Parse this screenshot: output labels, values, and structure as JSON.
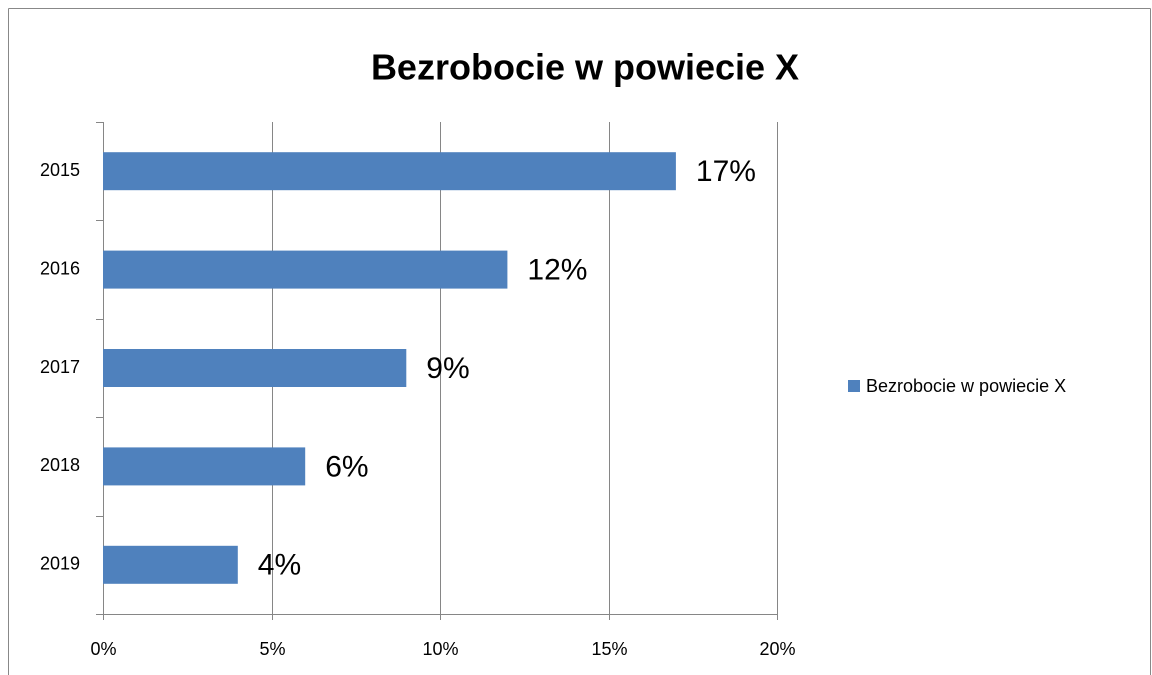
{
  "chart_data": {
    "type": "bar",
    "orientation": "horizontal",
    "title": "Bezrobocie w powiecie X",
    "categories": [
      "2015",
      "2016",
      "2017",
      "2018",
      "2019"
    ],
    "series": [
      {
        "name": "Bezrobocie w powiecie X",
        "color": "#4f81bd",
        "values": [
          17,
          12,
          9,
          6,
          4
        ],
        "value_labels": [
          "17%",
          "12%",
          "9%",
          "6%",
          "4%"
        ]
      }
    ],
    "xlim": [
      0,
      20
    ],
    "xticks": [
      {
        "value": 0,
        "label": "0%"
      },
      {
        "value": 5,
        "label": "5%"
      },
      {
        "value": 10,
        "label": "10%"
      },
      {
        "value": 15,
        "label": "15%"
      },
      {
        "value": 20,
        "label": "20%"
      }
    ],
    "grid": true,
    "legend": "right"
  }
}
